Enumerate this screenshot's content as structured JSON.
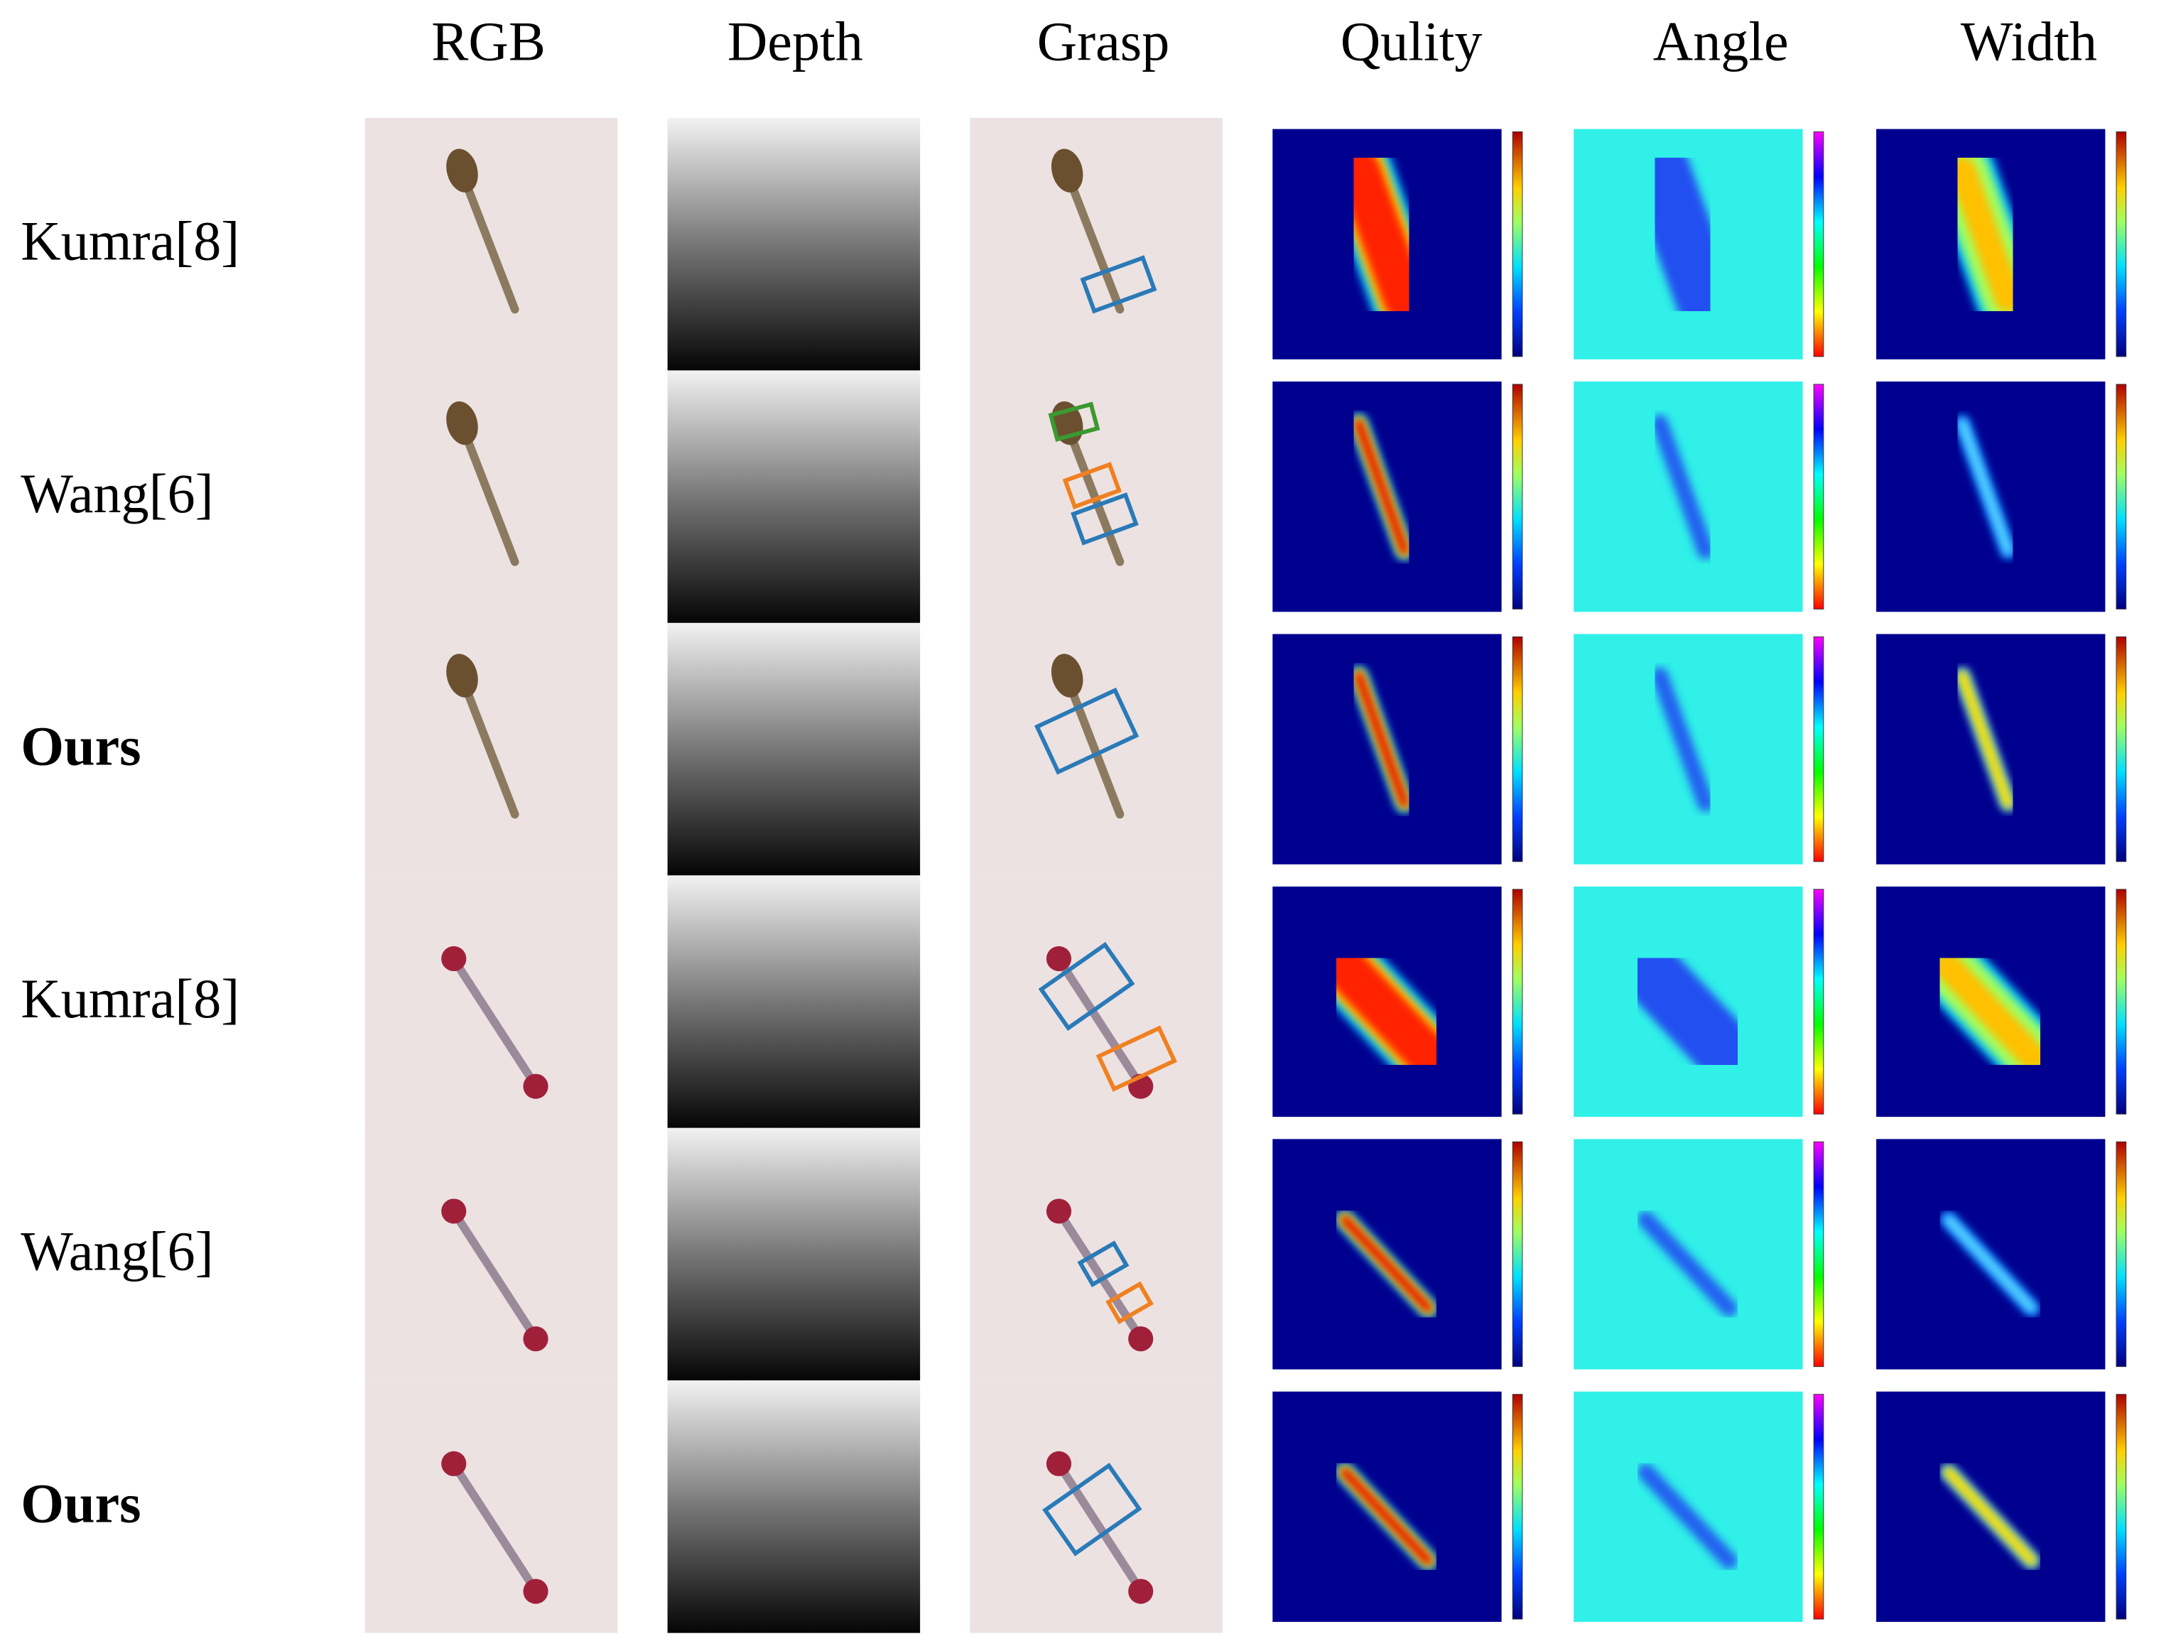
{
  "columns": [
    "RGB",
    "Depth",
    "Grasp",
    "Qulity",
    "Angle",
    "Width"
  ],
  "rows": [
    {
      "label": "Kumra[8]",
      "bold": false
    },
    {
      "label": "Wang[6]",
      "bold": false
    },
    {
      "label": "Ours",
      "bold": true
    },
    {
      "label": "Kumra[8]",
      "bold": false
    },
    {
      "label": "Wang[6]",
      "bold": false
    },
    {
      "label": "Ours",
      "bold": true
    }
  ]
}
